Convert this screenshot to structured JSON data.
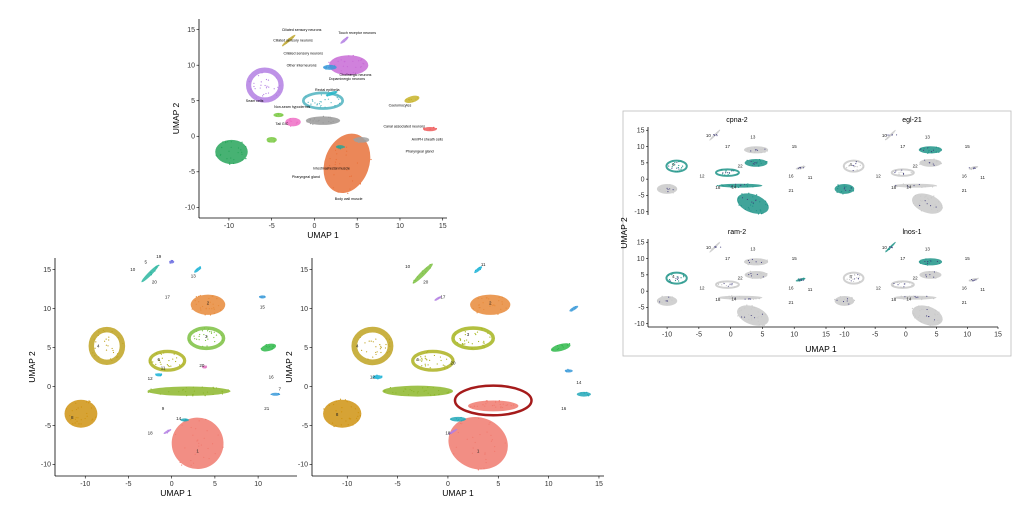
{
  "chart_data": [
    {
      "panel": "top",
      "type": "scatter",
      "xlabel": "UMAP 1",
      "ylabel": "UMAP 2",
      "xticks": [
        -10,
        -5,
        0,
        5,
        10,
        15
      ],
      "yticks": [
        -10,
        -5,
        0,
        5,
        10,
        15
      ],
      "xlim": [
        -13.5,
        15.5
      ],
      "ylim": [
        -11.5,
        16.5
      ],
      "clusters": [
        {
          "x": 3.8,
          "y": -3.8,
          "rx": 2.6,
          "ry": 4.3,
          "rot": 20,
          "color": "#e8723b"
        },
        {
          "x": -9.7,
          "y": -2.2,
          "rx": 1.9,
          "ry": 1.7,
          "rot": 0,
          "color": "#27a55a"
        },
        {
          "x": -5.8,
          "y": 7.2,
          "rx": 1.9,
          "ry": 2.1,
          "rot": 0,
          "color": "#b37fe3",
          "ring": true
        },
        {
          "x": 4.0,
          "y": 10.0,
          "rx": 2.3,
          "ry": 1.4,
          "rot": 0,
          "color": "#c86bd6"
        },
        {
          "x": 1.0,
          "y": 5.0,
          "rx": 2.3,
          "ry": 1.1,
          "rot": 0,
          "color": "#4fb3bf",
          "ring": true
        },
        {
          "x": 1.0,
          "y": 2.2,
          "rx": 2.0,
          "ry": 0.6,
          "rot": 0,
          "color": "#999999"
        },
        {
          "x": 11.4,
          "y": 5.2,
          "rx": 0.9,
          "ry": 0.45,
          "rot": -15,
          "color": "#c8b42c"
        },
        {
          "x": 13.5,
          "y": 1.0,
          "rx": 0.8,
          "ry": 0.3,
          "rot": 0,
          "color": "#ef5b5b"
        },
        {
          "x": -2.5,
          "y": 2.0,
          "rx": 0.9,
          "ry": 0.6,
          "rot": 0,
          "color": "#ef6fc6"
        },
        {
          "x": 5.5,
          "y": -0.5,
          "rx": 0.9,
          "ry": 0.4,
          "rot": 0,
          "color": "#a0a0a0"
        },
        {
          "x": 1.8,
          "y": 9.7,
          "rx": 0.8,
          "ry": 0.35,
          "rot": 0,
          "color": "#3a9ad9"
        },
        {
          "x": -3.0,
          "y": 13.5,
          "rx": 1.0,
          "ry": 0.2,
          "rot": -40,
          "color": "#bda52c"
        },
        {
          "x": -4.2,
          "y": 3.0,
          "rx": 0.6,
          "ry": 0.3,
          "rot": 0,
          "color": "#7ac943"
        },
        {
          "x": 2.0,
          "y": 6.0,
          "rx": 0.7,
          "ry": 0.25,
          "rot": -20,
          "color": "#28b7c9"
        },
        {
          "x": 3.5,
          "y": 13.5,
          "rx": 0.6,
          "ry": 0.2,
          "rot": -40,
          "color": "#b37fe3"
        },
        {
          "x": -5.0,
          "y": -0.5,
          "rx": 0.6,
          "ry": 0.4,
          "rot": 0,
          "color": "#7ac943"
        },
        {
          "x": 3.0,
          "y": -1.5,
          "rx": 0.5,
          "ry": 0.25,
          "rot": 0,
          "color": "#2aa594"
        }
      ],
      "labels": [
        {
          "text": "Ciliated sensory neurons",
          "x": -1.5,
          "y": 14.8
        },
        {
          "text": "Touch receptor neurons",
          "x": 5.0,
          "y": 14.4
        },
        {
          "text": "Ciliated sensory neurons",
          "x": -2.5,
          "y": 13.3
        },
        {
          "text": "Ciliated sensory neurons",
          "x": -1.3,
          "y": 11.5
        },
        {
          "text": "Other interneurons",
          "x": -1.5,
          "y": 9.8
        },
        {
          "text": "Cholinergic neurons",
          "x": 4.8,
          "y": 8.5
        },
        {
          "text": "Dopaminergic neurons",
          "x": 3.8,
          "y": 7.9
        },
        {
          "text": "Rectal epithelia",
          "x": 1.5,
          "y": 6.4
        },
        {
          "text": "Seam cells",
          "x": -7.0,
          "y": 4.8
        },
        {
          "text": "Non-seam hypodermis",
          "x": -2.6,
          "y": 4.0
        },
        {
          "text": "Coelomocytes",
          "x": 10.0,
          "y": 4.2
        },
        {
          "text": "Tail GIC",
          "x": -3.8,
          "y": 1.6
        },
        {
          "text": "Canal associated neurons",
          "x": 10.5,
          "y": 1.2
        },
        {
          "text": "Am/PH sheath cells",
          "x": 13.2,
          "y": -0.6
        },
        {
          "text": "Pharyngeal gland",
          "x": 12.3,
          "y": -2.3
        },
        {
          "text": "Intestinal/rectal muscle",
          "x": 2.0,
          "y": -4.7
        },
        {
          "text": "Pharyngeal gland",
          "x": -1.0,
          "y": -5.9
        },
        {
          "text": "Body wall muscle",
          "x": 4.0,
          "y": -9.0
        }
      ]
    },
    {
      "panel": "bottom-left",
      "type": "scatter",
      "xlabel": "UMAP 1",
      "ylabel": "UMAP 2",
      "xticks": [
        -10,
        -5,
        0,
        5,
        10
      ],
      "yticks": [
        -10,
        -5,
        0,
        5,
        10,
        15
      ],
      "xlim": [
        -13.5,
        14.5
      ],
      "ylim": [
        -11.5,
        16.5
      ],
      "clusters": [
        {
          "x": 3.0,
          "y": -7.3,
          "rx": 3.0,
          "ry": 3.3,
          "rot": 20,
          "color": "#f07a6e"
        },
        {
          "x": -10.5,
          "y": -3.5,
          "rx": 1.9,
          "ry": 1.8,
          "rot": 0,
          "color": "#cf9312"
        },
        {
          "x": -7.5,
          "y": 5.2,
          "rx": 1.8,
          "ry": 2.1,
          "rot": 0,
          "color": "#c0a322",
          "ring": true
        },
        {
          "x": 4.2,
          "y": 10.5,
          "rx": 2.0,
          "ry": 1.3,
          "rot": 0,
          "color": "#e78a3a"
        },
        {
          "x": 4.0,
          "y": 6.2,
          "rx": 2.0,
          "ry": 1.3,
          "rot": 0,
          "color": "#7dc142",
          "ring": true
        },
        {
          "x": -0.5,
          "y": 3.3,
          "rx": 2.0,
          "ry": 1.2,
          "rot": 0,
          "color": "#adb120",
          "ring": true
        },
        {
          "x": 2.0,
          "y": -0.6,
          "rx": 4.8,
          "ry": 0.6,
          "rot": 0,
          "color": "#8db72c"
        },
        {
          "x": 11.2,
          "y": 5.0,
          "rx": 0.9,
          "ry": 0.45,
          "rot": -15,
          "color": "#2fb84a"
        },
        {
          "x": -2.5,
          "y": 14.5,
          "rx": 1.4,
          "ry": 0.25,
          "rot": -45,
          "color": "#2cb6a0"
        },
        {
          "x": 0.0,
          "y": 16.0,
          "rx": 0.3,
          "ry": 0.2,
          "rot": 0,
          "color": "#6a6ce0"
        },
        {
          "x": 3.0,
          "y": 15.0,
          "rx": 0.5,
          "ry": 0.2,
          "rot": -40,
          "color": "#19b2d6"
        },
        {
          "x": 10.5,
          "y": 11.5,
          "rx": 0.4,
          "ry": 0.2,
          "rot": 0,
          "color": "#3a9ad9"
        },
        {
          "x": -1.5,
          "y": 1.5,
          "rx": 0.4,
          "ry": 0.2,
          "rot": 0,
          "color": "#19b2d6"
        },
        {
          "x": 1.5,
          "y": -4.3,
          "rx": 0.5,
          "ry": 0.2,
          "rot": 0,
          "color": "#22a8b8"
        },
        {
          "x": -0.5,
          "y": -5.8,
          "rx": 0.5,
          "ry": 0.15,
          "rot": -30,
          "color": "#b37fe3"
        },
        {
          "x": 12.0,
          "y": -1.0,
          "rx": 0.5,
          "ry": 0.2,
          "rot": 0,
          "color": "#3a9ad9"
        },
        {
          "x": 3.8,
          "y": 2.5,
          "rx": 0.3,
          "ry": 0.2,
          "rot": 0,
          "color": "#e377c2"
        }
      ],
      "labels": [
        {
          "text": "19",
          "x": -1.5,
          "y": 16.5
        },
        {
          "text": "5",
          "x": -3.0,
          "y": 15.8
        },
        {
          "text": "10",
          "x": -4.5,
          "y": 14.8
        },
        {
          "text": "20",
          "x": -2.0,
          "y": 13.2
        },
        {
          "text": "13",
          "x": 2.5,
          "y": 14.0
        },
        {
          "text": "17",
          "x": -0.5,
          "y": 11.3
        },
        {
          "text": "15",
          "x": 10.5,
          "y": 10.0
        },
        {
          "text": "2",
          "x": 4.2,
          "y": 10.5
        },
        {
          "text": "4",
          "x": -8.5,
          "y": 5.0
        },
        {
          "text": "3",
          "x": 4.0,
          "y": 6.2
        },
        {
          "text": "6",
          "x": -1.5,
          "y": 3.3
        },
        {
          "text": "11",
          "x": -1.0,
          "y": 2.2
        },
        {
          "text": "20",
          "x": 3.5,
          "y": 2.5
        },
        {
          "text": "12",
          "x": -2.5,
          "y": 0.8
        },
        {
          "text": "16",
          "x": 11.5,
          "y": 1.0
        },
        {
          "text": "7",
          "x": 12.5,
          "y": -0.5
        },
        {
          "text": "21",
          "x": 11.0,
          "y": -3.0
        },
        {
          "text": "8",
          "x": -11.5,
          "y": -4.2
        },
        {
          "text": "9",
          "x": -1.0,
          "y": -3.0
        },
        {
          "text": "14",
          "x": 0.8,
          "y": -4.3
        },
        {
          "text": "18",
          "x": -2.5,
          "y": -6.2
        },
        {
          "text": "1",
          "x": 3.0,
          "y": -8.5
        }
      ]
    },
    {
      "panel": "bottom-middle",
      "type": "scatter",
      "xlabel": "UMAP 1",
      "ylabel": "UMAP 2",
      "xticks": [
        -10,
        -5,
        0,
        5,
        10,
        15
      ],
      "yticks": [
        -10,
        -5,
        0,
        5,
        10,
        15
      ],
      "xlim": [
        -13.5,
        15.5
      ],
      "ylim": [
        -11.5,
        16.5
      ],
      "clusters": [
        {
          "x": 3.0,
          "y": -7.3,
          "rx": 3.0,
          "ry": 3.3,
          "rot": 20,
          "color": "#f07a6e"
        },
        {
          "x": 4.5,
          "y": -2.5,
          "rx": 2.5,
          "ry": 0.7,
          "rot": 0,
          "color": "#f07a6e"
        },
        {
          "x": -10.5,
          "y": -3.5,
          "rx": 1.9,
          "ry": 1.8,
          "rot": 0,
          "color": "#cf9312"
        },
        {
          "x": -7.5,
          "y": 5.2,
          "rx": 1.8,
          "ry": 2.1,
          "rot": 0,
          "color": "#c0a322",
          "ring": true
        },
        {
          "x": 4.2,
          "y": 10.5,
          "rx": 2.0,
          "ry": 1.3,
          "rot": 0,
          "color": "#e78a3a"
        },
        {
          "x": 2.5,
          "y": 6.2,
          "rx": 2.0,
          "ry": 1.3,
          "rot": 0,
          "color": "#a6b51e",
          "ring": true
        },
        {
          "x": -1.5,
          "y": 3.3,
          "rx": 2.0,
          "ry": 1.2,
          "rot": 0,
          "color": "#adb120",
          "ring": true
        },
        {
          "x": -3.0,
          "y": -0.6,
          "rx": 3.5,
          "ry": 0.7,
          "rot": 0,
          "color": "#8db72c"
        },
        {
          "x": 11.2,
          "y": 5.0,
          "rx": 1.0,
          "ry": 0.45,
          "rot": -15,
          "color": "#2fb84a"
        },
        {
          "x": -2.5,
          "y": 14.5,
          "rx": 1.4,
          "ry": 0.3,
          "rot": -45,
          "color": "#7dc142"
        },
        {
          "x": 3.0,
          "y": 15.0,
          "rx": 0.5,
          "ry": 0.2,
          "rot": -40,
          "color": "#19b2d6"
        },
        {
          "x": 13.5,
          "y": -1.0,
          "rx": 0.7,
          "ry": 0.3,
          "rot": 0,
          "color": "#22a8b8"
        },
        {
          "x": -7.0,
          "y": 1.2,
          "rx": 0.5,
          "ry": 0.25,
          "rot": 0,
          "color": "#19b2d6"
        },
        {
          "x": 1.0,
          "y": -4.2,
          "rx": 0.8,
          "ry": 0.3,
          "rot": 0,
          "color": "#22a8b8"
        },
        {
          "x": 0.5,
          "y": -5.8,
          "rx": 0.5,
          "ry": 0.15,
          "rot": -30,
          "color": "#b37fe3"
        },
        {
          "x": 12.5,
          "y": 10.0,
          "rx": 0.5,
          "ry": 0.2,
          "rot": -30,
          "color": "#3a9ad9"
        },
        {
          "x": 12.0,
          "y": 2.0,
          "rx": 0.4,
          "ry": 0.2,
          "rot": 0,
          "color": "#3a9ad9"
        },
        {
          "x": -1.0,
          "y": 11.3,
          "rx": 0.4,
          "ry": 0.15,
          "rot": -30,
          "color": "#b37fe3"
        }
      ],
      "labels": [
        {
          "text": "10",
          "x": -4.0,
          "y": 15.2
        },
        {
          "text": "20",
          "x": -2.2,
          "y": 13.2
        },
        {
          "text": "11",
          "x": 3.5,
          "y": 15.5
        },
        {
          "text": "17",
          "x": -0.5,
          "y": 11.3
        },
        {
          "text": "2",
          "x": 4.2,
          "y": 10.5
        },
        {
          "text": "4",
          "x": -9.0,
          "y": 5.0
        },
        {
          "text": "3",
          "x": 2.0,
          "y": 6.5
        },
        {
          "text": "6",
          "x": -3.0,
          "y": 3.3
        },
        {
          "text": "20",
          "x": 0.5,
          "y": 2.8
        },
        {
          "text": "12",
          "x": -7.5,
          "y": 1.0
        },
        {
          "text": "14",
          "x": 13.0,
          "y": 0.3
        },
        {
          "text": "16",
          "x": 11.5,
          "y": -3.0
        },
        {
          "text": "8",
          "x": -11.0,
          "y": -3.8
        },
        {
          "text": "18",
          "x": 0.0,
          "y": -6.2
        },
        {
          "text": "1",
          "x": 3.0,
          "y": -8.5
        }
      ],
      "highlight": {
        "x": 4.5,
        "y": -1.8,
        "rx": 3.8,
        "ry": 1.9
      }
    },
    {
      "panel": "right",
      "type": "scatter",
      "xlabel": "UMAP 1",
      "ylabel": "UMAP 2",
      "xticks": [
        -10,
        -5,
        0,
        5,
        10,
        15
      ],
      "yticks": [
        -10,
        -5,
        0,
        5,
        10,
        15
      ],
      "xlim": [
        -13,
        15
      ],
      "ylim": [
        -11,
        16
      ],
      "low_color": "#3f3b7c",
      "high_color": "#1f9488",
      "facets": [
        {
          "title": "cpna-2",
          "hi": [
            "A",
            "B",
            "C",
            "D",
            "E"
          ]
        },
        {
          "title": "egl-21",
          "hi": [
            "F",
            "G"
          ]
        },
        {
          "title": "ram-2",
          "hi": [
            "B",
            "H"
          ]
        },
        {
          "title": "lnos-1",
          "hi": [
            "G",
            "I"
          ]
        }
      ],
      "shapes": [
        {
          "id": "A",
          "x": 3.5,
          "y": -7.5,
          "rx": 2.6,
          "ry": 2.8,
          "rot": 20
        },
        {
          "id": "B",
          "x": -8.5,
          "y": 4.0,
          "rx": 1.6,
          "ry": 1.7,
          "rot": 0,
          "ring": true
        },
        {
          "id": "C",
          "x": 4.0,
          "y": 5.0,
          "rx": 1.8,
          "ry": 1.2,
          "rot": 0
        },
        {
          "id": "D",
          "x": -0.5,
          "y": 2.0,
          "rx": 1.8,
          "ry": 1.0,
          "rot": 0,
          "ring": true
        },
        {
          "id": "E",
          "x": 1.5,
          "y": -2.0,
          "rx": 3.5,
          "ry": 0.6,
          "rot": 0
        },
        {
          "id": "F",
          "x": -10.0,
          "y": -3.0,
          "rx": 1.6,
          "ry": 1.5,
          "rot": 0
        },
        {
          "id": "G",
          "x": 4.0,
          "y": 9.0,
          "rx": 1.9,
          "ry": 1.1,
          "rot": 0
        },
        {
          "id": "H",
          "x": 11.0,
          "y": 3.5,
          "rx": 0.8,
          "ry": 0.4,
          "rot": -15
        },
        {
          "id": "I",
          "x": -2.5,
          "y": 13.5,
          "rx": 1.2,
          "ry": 0.25,
          "rot": -45
        }
      ],
      "numbers": [
        {
          "text": "10",
          "x": -3.5,
          "y": 13.0
        },
        {
          "text": "13",
          "x": 3.5,
          "y": 12.5
        },
        {
          "text": "17",
          "x": -0.5,
          "y": 9.5
        },
        {
          "text": "15",
          "x": 10.0,
          "y": 9.5
        },
        {
          "text": "4",
          "x": -9.0,
          "y": 4.0
        },
        {
          "text": "22",
          "x": 1.5,
          "y": 3.5
        },
        {
          "text": "12",
          "x": -4.5,
          "y": 0.5
        },
        {
          "text": "16",
          "x": 9.5,
          "y": 0.5
        },
        {
          "text": "11",
          "x": 12.5,
          "y": 0.0
        },
        {
          "text": "14",
          "x": 0.5,
          "y": -2.8
        },
        {
          "text": "18",
          "x": -2.0,
          "y": -3.0
        },
        {
          "text": "21",
          "x": 9.5,
          "y": -4.0
        }
      ]
    }
  ]
}
